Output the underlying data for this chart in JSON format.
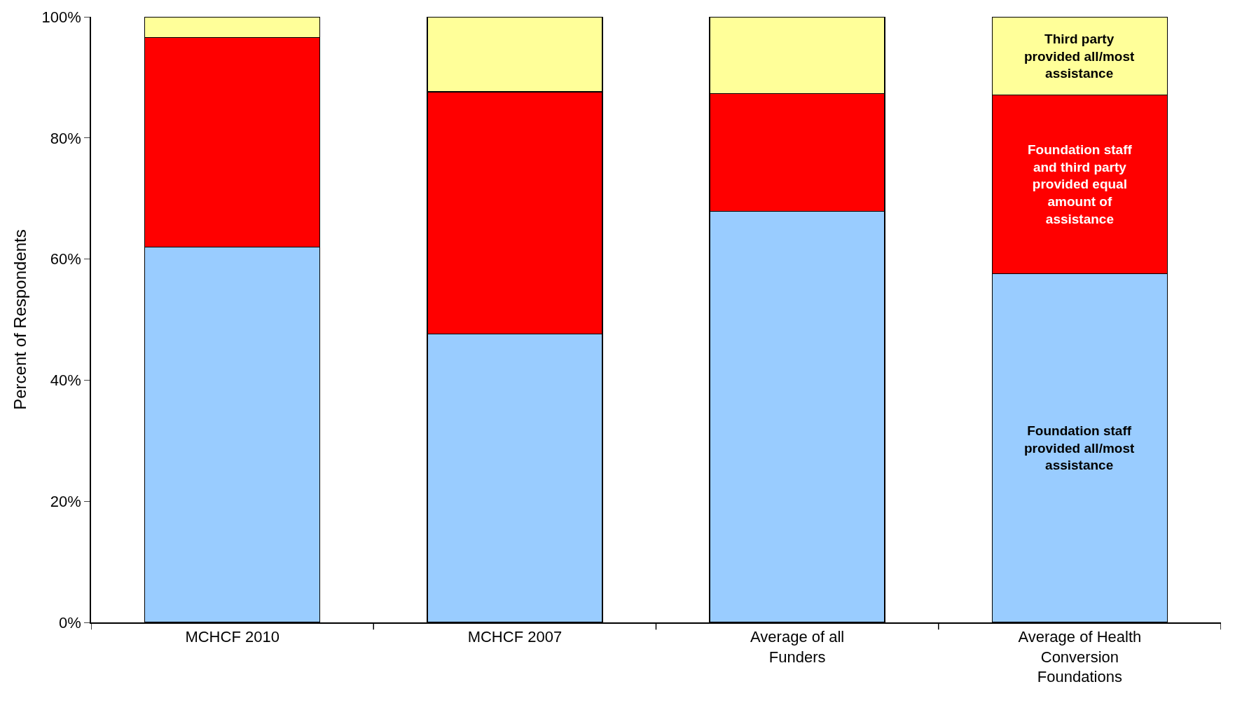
{
  "chart_data": {
    "type": "bar",
    "stacked": true,
    "ylabel": "Percent of Respondents",
    "categories": [
      "MCHCF 2010",
      "MCHCF 2007",
      "Average of all Funders",
      "Average of Health Conversion Foundations"
    ],
    "series": [
      {
        "name": "Foundation staff provided all/most assistance",
        "color": "#99ccff",
        "values": [
          62,
          47.6,
          67.9,
          57.6
        ]
      },
      {
        "name": "Foundation staff and third party provided equal amount of assistance",
        "color": "#ff0000",
        "values": [
          34.6,
          40,
          19.4,
          29.5
        ]
      },
      {
        "name": "Third party provided all/most assistance",
        "color": "#ffff99",
        "values": [
          3.4,
          12.4,
          12.7,
          12.9
        ]
      }
    ],
    "ylim": [
      0,
      100
    ],
    "yticks": [
      {
        "value": 0,
        "label": "0%"
      },
      {
        "value": 20,
        "label": "20%"
      },
      {
        "value": 40,
        "label": "40%"
      },
      {
        "value": 60,
        "label": "60%"
      },
      {
        "value": 80,
        "label": "80%"
      },
      {
        "value": 100,
        "label": "100%"
      }
    ],
    "legend": false
  }
}
